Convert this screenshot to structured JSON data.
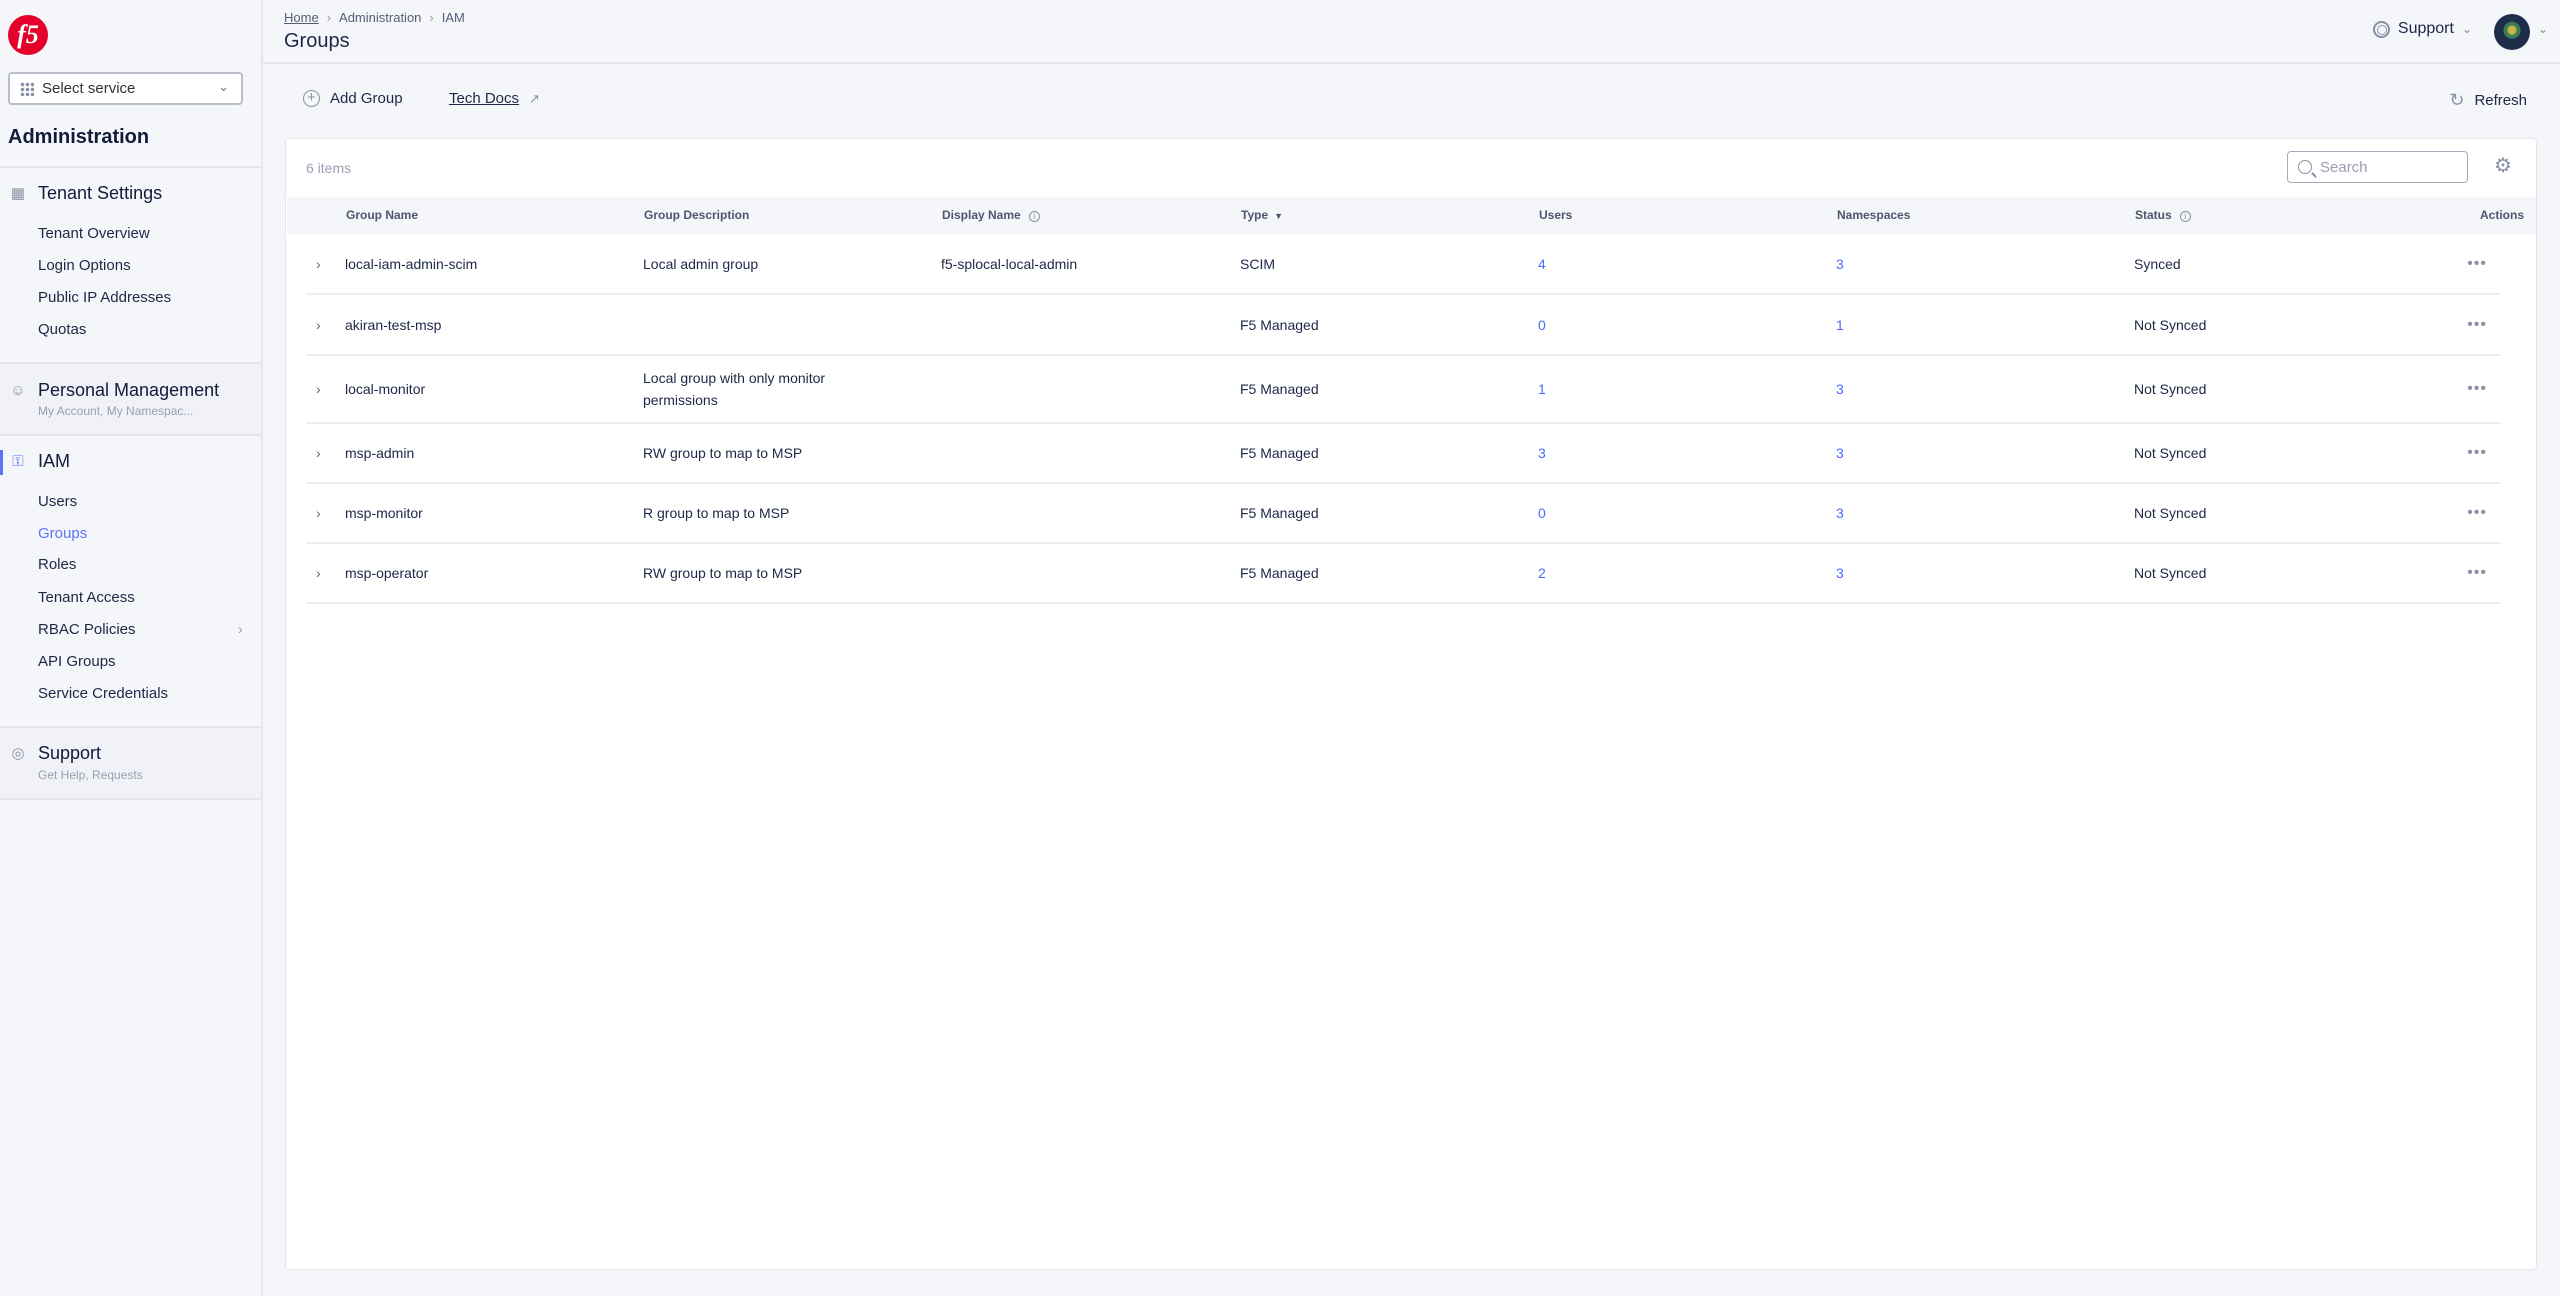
{
  "brand": {
    "logo_text": "f5",
    "accent": "#5b73f5",
    "link": "#4a6cf7"
  },
  "sidebar": {
    "select_service": "Select service",
    "title": "Administration",
    "tenant_settings": {
      "label": "Tenant Settings",
      "items": [
        "Tenant Overview",
        "Login Options",
        "Public IP Addresses",
        "Quotas"
      ]
    },
    "personal": {
      "label": "Personal Management",
      "sub": "My Account, My Namespac..."
    },
    "iam": {
      "label": "IAM",
      "items": [
        "Users",
        "Groups",
        "Roles",
        "Tenant Access",
        "RBAC Policies",
        "API Groups",
        "Service Credentials"
      ],
      "active": "Groups"
    },
    "support": {
      "label": "Support",
      "sub": "Get Help, Requests"
    }
  },
  "header": {
    "breadcrumb": [
      "Home",
      "Administration",
      "IAM"
    ],
    "title": "Groups",
    "support": "Support"
  },
  "toolbar": {
    "add_group": "Add Group",
    "tech_docs": "Tech Docs",
    "refresh": "Refresh"
  },
  "table": {
    "count": "6 items",
    "search_placeholder": "Search",
    "columns": [
      "Group Name",
      "Group Description",
      "Display Name",
      "Type",
      "Users",
      "Namespaces",
      "Status",
      "Actions"
    ],
    "rows": [
      {
        "name": "local-iam-admin-scim",
        "desc": "Local admin group",
        "display": "f5-splocal-local-admin",
        "type": "SCIM",
        "users": "4",
        "namespaces": "3",
        "status": "Synced"
      },
      {
        "name": "akiran-test-msp",
        "desc": "",
        "display": "",
        "type": "F5 Managed",
        "users": "0",
        "namespaces": "1",
        "status": "Not Synced"
      },
      {
        "name": "local-monitor",
        "desc": "Local group with only monitor permissions",
        "display": "",
        "type": "F5 Managed",
        "users": "1",
        "namespaces": "3",
        "status": "Not Synced"
      },
      {
        "name": "msp-admin",
        "desc": "RW group to map to MSP",
        "display": "",
        "type": "F5 Managed",
        "users": "3",
        "namespaces": "3",
        "status": "Not Synced"
      },
      {
        "name": "msp-monitor",
        "desc": "R group to map to MSP",
        "display": "",
        "type": "F5 Managed",
        "users": "0",
        "namespaces": "3",
        "status": "Not Synced"
      },
      {
        "name": "msp-operator",
        "desc": "RW group to map to MSP",
        "display": "",
        "type": "F5 Managed",
        "users": "2",
        "namespaces": "3",
        "status": "Not Synced"
      }
    ]
  }
}
